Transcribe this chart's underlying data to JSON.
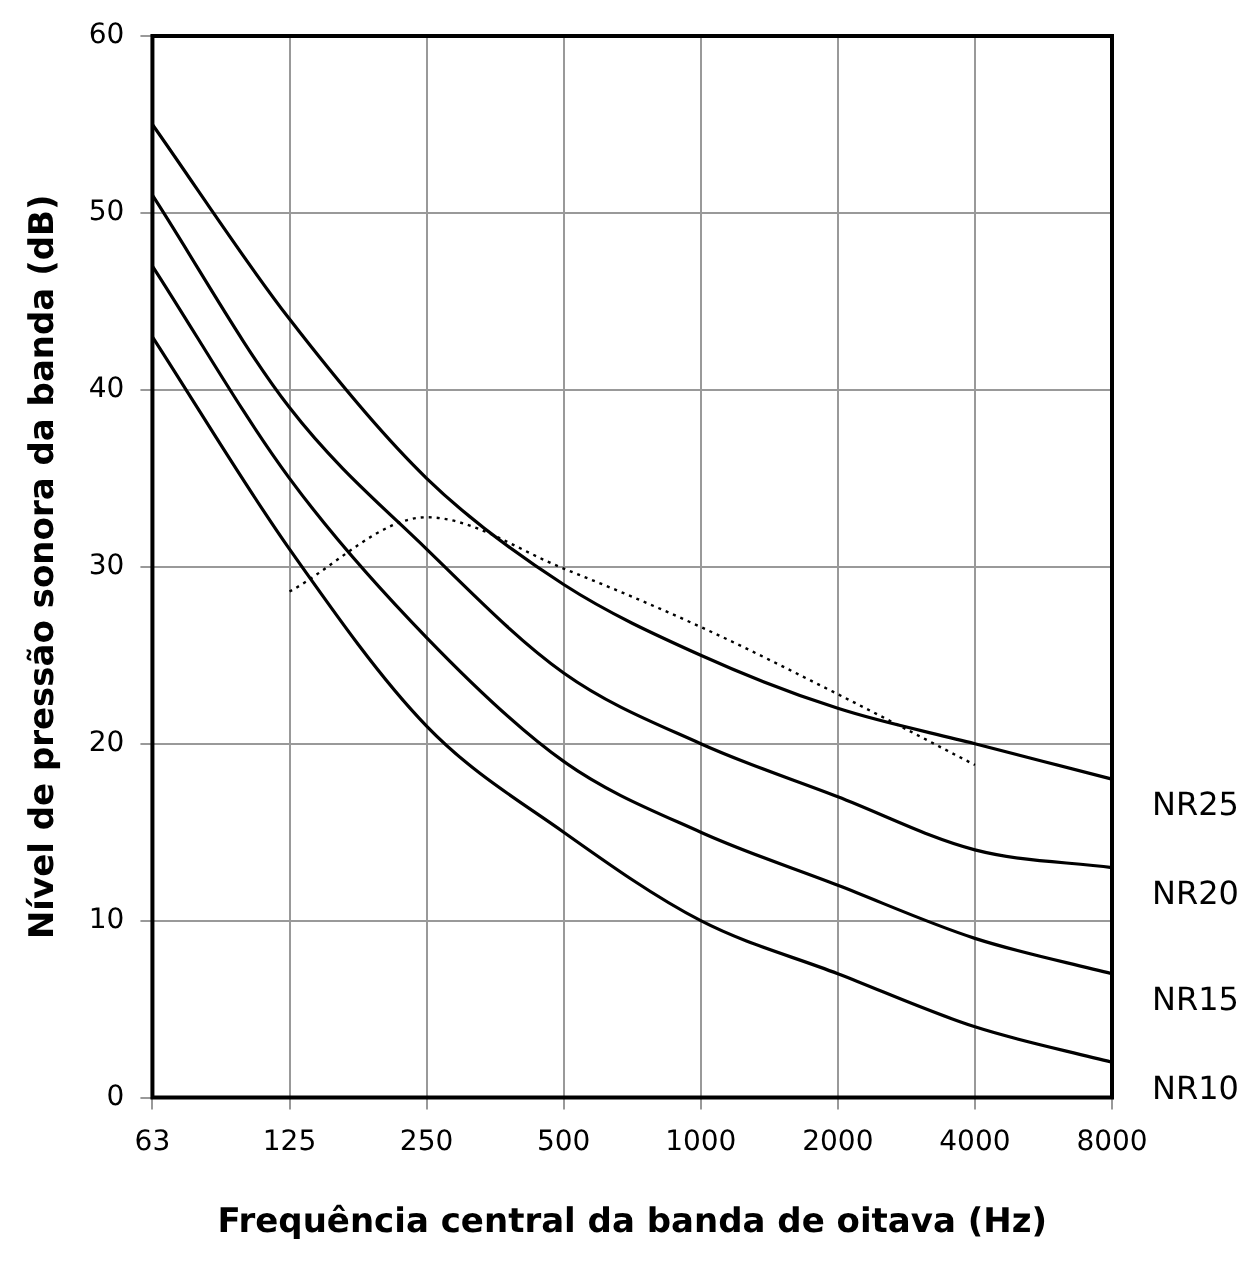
{
  "chart_data": {
    "type": "line",
    "xlabel": "Frequência central da banda de oitava (Hz)",
    "ylabel": "Nível de pressão sonora da banda (dB)",
    "categories": [
      "63",
      "125",
      "250",
      "500",
      "1000",
      "2000",
      "4000",
      "8000"
    ],
    "series": [
      {
        "name": "NR25",
        "color": "#000000",
        "values": [
          55,
          44,
          35,
          29,
          25,
          22,
          20,
          18
        ]
      },
      {
        "name": "NR20",
        "color": "#000000",
        "values": [
          51,
          39,
          31,
          24,
          20,
          17,
          14,
          13
        ]
      },
      {
        "name": "NR15",
        "color": "#000000",
        "values": [
          47,
          35,
          26,
          19,
          15,
          12,
          9,
          7
        ]
      },
      {
        "name": "NR10",
        "color": "#000000",
        "values": [
          43,
          31,
          21,
          15,
          10,
          7,
          4,
          2
        ]
      },
      {
        "color": "#000000",
        "line_style": "dotted",
        "values": [
          null,
          28.6,
          32.8,
          29.9,
          26.6,
          22.8,
          18.8,
          null
        ]
      }
    ],
    "ylim": [
      0,
      60
    ],
    "yticks": [
      0,
      10,
      20,
      30,
      40,
      50,
      60
    ],
    "grid": true,
    "legend": false,
    "marker": "none",
    "line_style": "solid"
  }
}
